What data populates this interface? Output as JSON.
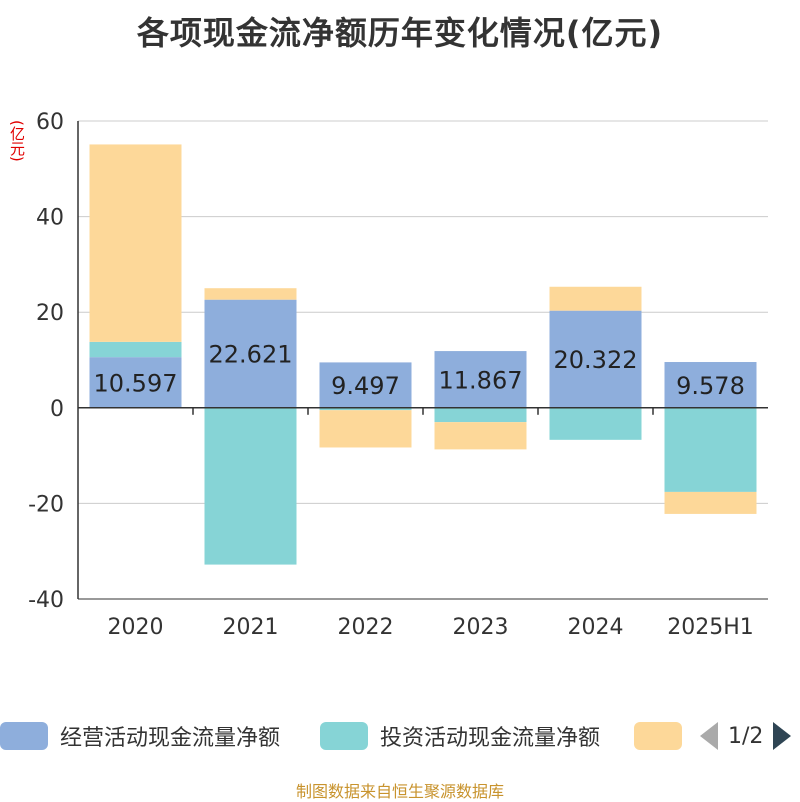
{
  "title": "各项现金流净额历年变化情况(亿元)",
  "unit_label": "(亿元)",
  "source": "制图数据来自恒生聚源数据库",
  "legend": {
    "items": [
      {
        "label": "经营活动现金流量净额",
        "color": "#8eaedc"
      },
      {
        "label": "投资活动现金流量净额",
        "color": "#86d4d6"
      },
      {
        "label": "",
        "color": "#fdd899"
      }
    ],
    "page_indicator": "1/2"
  },
  "chart_data": {
    "type": "bar",
    "stacked": true,
    "categories": [
      "2020",
      "2021",
      "2022",
      "2023",
      "2024",
      "2025H1"
    ],
    "series": [
      {
        "name": "经营活动现金流量净额",
        "color": "#8eaedc",
        "values": [
          10.597,
          22.621,
          9.497,
          11.867,
          20.322,
          9.578
        ]
      },
      {
        "name": "投资活动现金流量净额",
        "color": "#86d4d6",
        "values": [
          3.2,
          -32.8,
          -0.5,
          -3.0,
          -6.7,
          -17.6
        ]
      },
      {
        "color": "#fdd899",
        "values": [
          41.3,
          2.4,
          -7.8,
          -5.7,
          5.0,
          -4.6
        ]
      }
    ],
    "data_labels": [
      "10.597",
      "22.621",
      "9.497",
      "11.867",
      "20.322",
      "9.578"
    ],
    "ylim": [
      -40,
      60
    ],
    "yticks": [
      60,
      40,
      20,
      0,
      -20,
      -40
    ],
    "grid": true
  }
}
